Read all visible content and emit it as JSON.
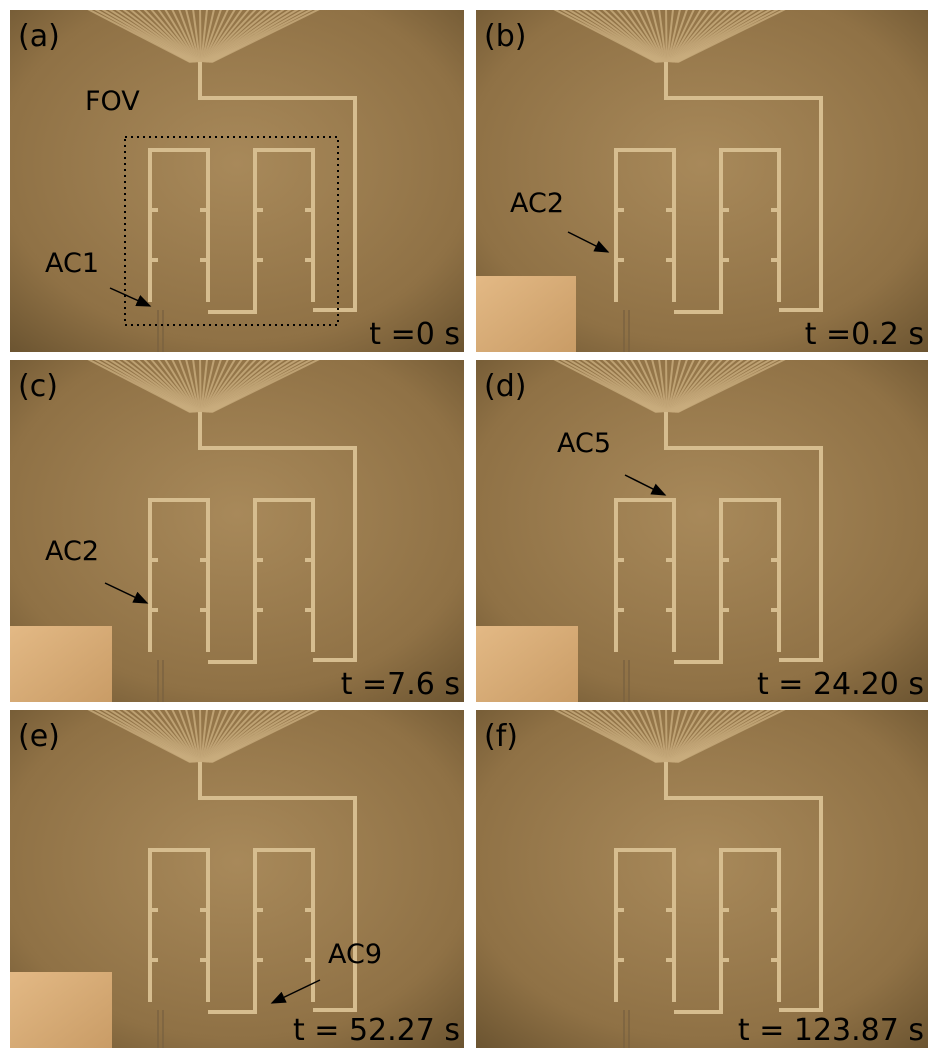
{
  "panels": [
    {
      "label": "(a)",
      "time": "t =0 s",
      "annotations": [
        "FOV",
        "AC1"
      ]
    },
    {
      "label": "(b)",
      "time": "t =0.2 s",
      "annotations": [
        "AC2"
      ]
    },
    {
      "label": "(c)",
      "time": "t =7.6 s",
      "annotations": [
        "AC2"
      ]
    },
    {
      "label": "(d)",
      "time": "t = 24.20 s",
      "annotations": [
        "AC5"
      ]
    },
    {
      "label": "(e)",
      "time": "t = 52.27 s",
      "annotations": [
        "AC9"
      ]
    },
    {
      "label": "(f)",
      "time": "t = 123.87 s",
      "annotations": []
    }
  ]
}
